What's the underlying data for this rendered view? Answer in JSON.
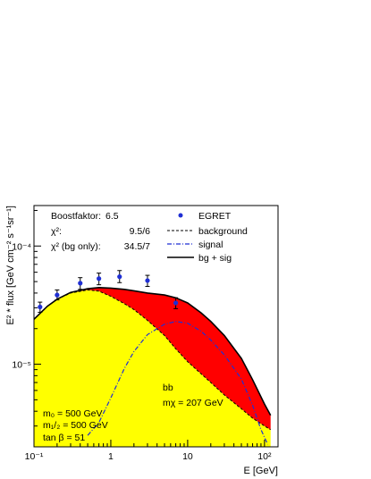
{
  "chart_data": {
    "type": "area",
    "xlabel": "E [GeV]",
    "ylabel": "E² * flux [GeV cm⁻² s⁻¹sr⁻¹]",
    "xscale": "log",
    "yscale": "log",
    "xlim": [
      0.1,
      150
    ],
    "ylim": [
      2e-06,
      0.00022
    ],
    "x_ticks": [
      {
        "value": 0.1,
        "label": "10⁻¹"
      },
      {
        "value": 1,
        "label": "1"
      },
      {
        "value": 10,
        "label": "10"
      },
      {
        "value": 100,
        "label": "10²"
      }
    ],
    "y_ticks": [
      {
        "value": 1e-05,
        "label": "10⁻⁵"
      },
      {
        "value": 0.0001,
        "label": "10⁻⁴"
      }
    ],
    "stats": [
      {
        "label": "Boostfaktor:",
        "value": "6.5"
      },
      {
        "label": "χ²:",
        "value": "9.5/6"
      },
      {
        "label": "χ² (bg only):",
        "value": "34.5/7"
      }
    ],
    "legend_position": "top-right",
    "legend": [
      {
        "label": "EGRET",
        "style": "point",
        "color": "#1f2fd4"
      },
      {
        "label": "background",
        "style": "dashed",
        "color": "#000000"
      },
      {
        "label": "signal",
        "style": "dashdot",
        "color": "#1f2fd4"
      },
      {
        "label": "bg + sig",
        "style": "solid",
        "color": "#000000"
      }
    ],
    "annotations": {
      "channel": "bb",
      "mass": "mχ = 207 GeV",
      "params": [
        "m₀ = 500 GeV",
        "m₁/₂ = 500 GeV",
        "tan β = 51"
      ]
    },
    "colors": {
      "background_fill": "#ffff00",
      "signal_fill": "#ff0000",
      "points": "#1f2fd4"
    },
    "series": [
      {
        "name": "EGRET",
        "kind": "points",
        "x": [
          0.12,
          0.2,
          0.4,
          0.7,
          1.3,
          3.0,
          7.0
        ],
        "y": [
          3.05e-05,
          3.85e-05,
          4.85e-05,
          5.3e-05,
          5.5e-05,
          5.1e-05,
          3.3e-05
        ],
        "y_low": [
          2.75e-05,
          3.5e-05,
          4.3e-05,
          4.7e-05,
          4.9e-05,
          4.55e-05,
          2.95e-05
        ],
        "y_high": [
          3.35e-05,
          4.25e-05,
          5.4e-05,
          5.9e-05,
          6.2e-05,
          5.65e-05,
          3.65e-05
        ]
      },
      {
        "name": "background",
        "kind": "curve",
        "x": [
          0.1,
          0.15,
          0.2,
          0.3,
          0.5,
          0.7,
          1.0,
          1.5,
          2.0,
          3.0,
          5.0,
          7.0,
          10,
          15,
          20,
          30,
          50,
          70,
          100,
          120
        ],
        "y": [
          2.4e-05,
          3.1e-05,
          3.55e-05,
          4e-05,
          4.25e-05,
          4.15e-05,
          3.75e-05,
          3.25e-05,
          2.9e-05,
          2.35e-05,
          1.75e-05,
          1.35e-05,
          1.05e-05,
          8.3e-06,
          7e-06,
          5.5e-06,
          4.2e-06,
          3.5e-06,
          3e-06,
          2.8e-06
        ]
      },
      {
        "name": "signal",
        "kind": "curve",
        "x": [
          0.5,
          0.7,
          1.0,
          1.5,
          2.0,
          3.0,
          5.0,
          7.0,
          10,
          15,
          20,
          30,
          50,
          70,
          90,
          110
        ],
        "y": [
          2.5e-06,
          3.2e-06,
          5.2e-06,
          9.2e-06,
          1.28e-05,
          1.78e-05,
          2.18e-05,
          2.3e-05,
          2.22e-05,
          1.9e-05,
          1.6e-05,
          1.2e-05,
          7.5e-06,
          4.5e-06,
          2.8e-06,
          2.1e-06
        ]
      },
      {
        "name": "bg + sig",
        "kind": "curve",
        "x": [
          0.1,
          0.15,
          0.2,
          0.3,
          0.5,
          0.7,
          1.0,
          1.5,
          2.0,
          3.0,
          5.0,
          7.0,
          10,
          15,
          20,
          30,
          50,
          70,
          100,
          120
        ],
        "y": [
          2.4e-05,
          3.1e-05,
          3.55e-05,
          4.05e-05,
          4.35e-05,
          4.45e-05,
          4.4e-05,
          4.3e-05,
          4.18e-05,
          4e-05,
          3.85e-05,
          3.65e-05,
          3.3e-05,
          2.72e-05,
          2.3e-05,
          1.75e-05,
          1.12e-05,
          7.4e-06,
          4.6e-06,
          3.7e-06
        ]
      }
    ]
  }
}
